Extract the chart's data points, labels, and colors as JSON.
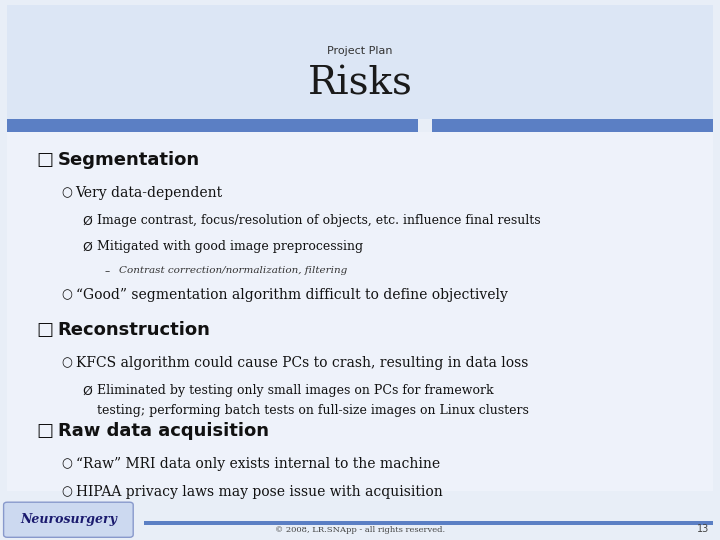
{
  "title_small": "Project Plan",
  "title_large": "Risks",
  "bg_color": "#e8eef7",
  "header_bg": "#dce6f5",
  "bar_color_left": "#5b7fc4",
  "bar_color_right": "#5b7fc4",
  "content_bg": "#eef2fa",
  "footer_text": "© 2008, LR.SNApp - all rights reserved.",
  "footer_logo_text": "Neurosurgery",
  "footer_logo_bg": "#ccd9f0",
  "page_number": "13",
  "sections": [
    {
      "heading": "Segmentation",
      "items": [
        {
          "level": 1,
          "bullet": "○",
          "text": "Very data-dependent"
        },
        {
          "level": 2,
          "bullet": "Ø",
          "text": "Image contrast, focus/resolution of objects, etc. influence final results"
        },
        {
          "level": 2,
          "bullet": "Ø",
          "text": "Mitigated with good image preprocessing"
        },
        {
          "level": 3,
          "bullet": "–",
          "text": "Contrast correction/normalization, filtering"
        },
        {
          "level": 1,
          "bullet": "○",
          "text": "“Good” segmentation algorithm difficult to define objectively"
        }
      ]
    },
    {
      "heading": "Reconstruction",
      "items": [
        {
          "level": 1,
          "bullet": "○",
          "text": "KFCS algorithm could cause PCs to crash, resulting in data loss"
        },
        {
          "level": 2,
          "bullet": "Ø",
          "text": "Eliminated by testing only small images on PCs for framework\n        testing; performing batch tests on full-size images on Linux clusters"
        }
      ]
    },
    {
      "heading": "Raw data acquisition",
      "items": [
        {
          "level": 1,
          "bullet": "○",
          "text": "“Raw” MRI data only exists internal to the machine"
        },
        {
          "level": 1,
          "bullet": "○",
          "text": "HIPAA privacy laws may pose issue with acquisition"
        }
      ]
    }
  ]
}
